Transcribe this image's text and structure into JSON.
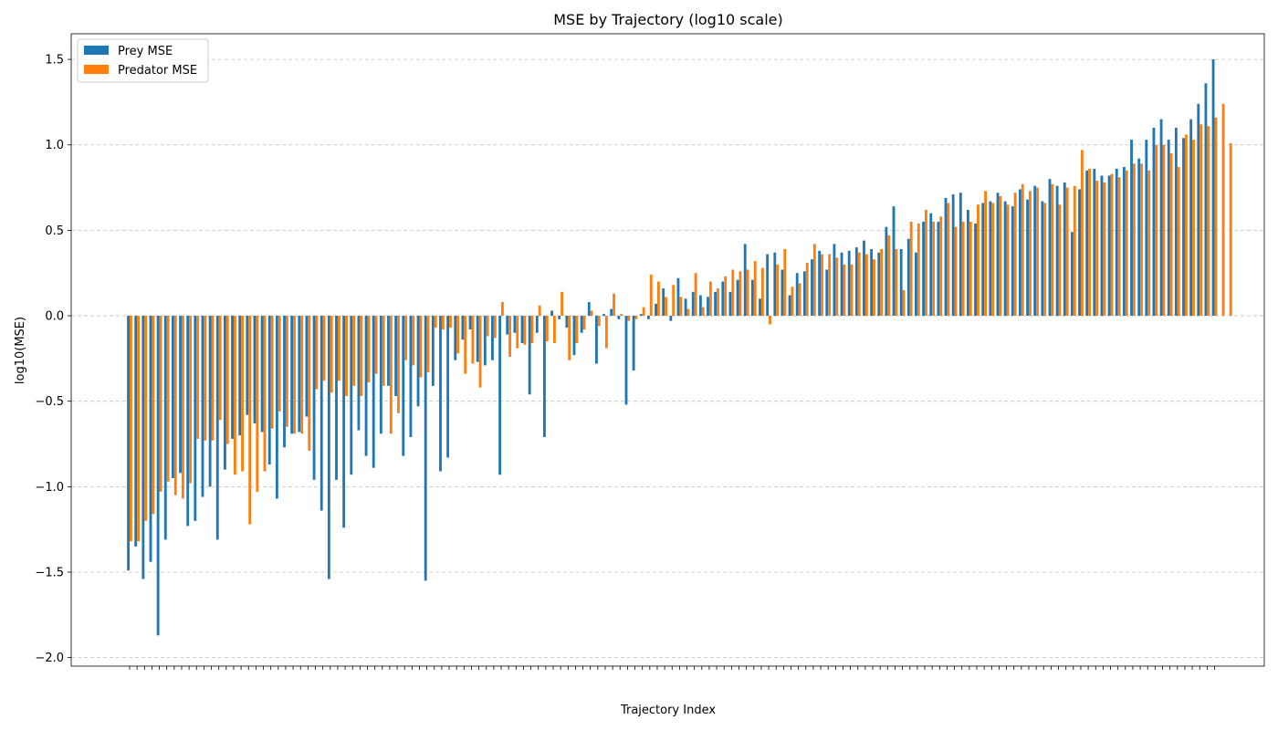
{
  "chart_data": {
    "type": "bar",
    "title": "MSE by Trajectory (log10 scale)",
    "xlabel": "Trajectory Index",
    "ylabel": "log10(MSE)",
    "ylim": [
      -2.05,
      1.65
    ],
    "yticks": [
      -2.0,
      -1.5,
      -1.0,
      -0.5,
      0.0,
      0.5,
      1.0,
      1.5
    ],
    "ytick_labels": [
      "−2.0",
      "−1.5",
      "−1.0",
      "−0.5",
      "0.0",
      "0.5",
      "1.0",
      "1.5"
    ],
    "x_tick_labels_shown": false,
    "grid": "y-dashed",
    "legend": "top-left",
    "series": [
      {
        "name": "Prey MSE",
        "color": "#1f77b4",
        "values": [
          -1.49,
          -1.35,
          -1.54,
          -1.44,
          -1.87,
          -1.31,
          -0.95,
          -0.92,
          -1.23,
          -1.2,
          -1.06,
          -1.0,
          -1.31,
          -0.9,
          -0.72,
          -0.7,
          -0.58,
          -0.63,
          -0.68,
          -0.87,
          -1.07,
          -0.77,
          -0.69,
          -0.68,
          -0.59,
          -0.96,
          -1.14,
          -1.54,
          -0.96,
          -1.24,
          -0.93,
          -0.67,
          -0.82,
          -0.89,
          -0.69,
          -0.41,
          -0.47,
          -0.82,
          -0.71,
          -0.53,
          -1.55,
          -0.41,
          -0.91,
          -0.83,
          -0.26,
          -0.14,
          -0.08,
          -0.27,
          -0.29,
          -0.26,
          -0.93,
          -0.11,
          -0.1,
          -0.16,
          -0.46,
          -0.1,
          -0.71,
          0.03,
          -0.02,
          -0.07,
          -0.23,
          -0.1,
          0.08,
          -0.28,
          0.01,
          0.04,
          -0.02,
          -0.52,
          -0.32,
          0.01,
          -0.02,
          0.07,
          0.16,
          -0.03,
          0.22,
          0.1,
          0.14,
          0.12,
          0.11,
          0.14,
          0.2,
          0.14,
          0.21,
          0.42,
          0.21,
          0.1,
          0.36,
          0.37,
          0.27,
          0.12,
          0.25,
          0.26,
          0.33,
          0.38,
          0.27,
          0.42,
          0.37,
          0.38,
          0.4,
          0.44,
          0.39,
          0.37,
          0.52,
          0.64,
          0.39,
          0.45,
          0.37,
          0.55,
          0.6,
          0.55,
          0.69,
          0.71,
          0.72,
          0.62,
          0.54,
          0.66,
          0.67,
          0.72,
          0.67,
          0.64,
          0.74,
          0.68,
          0.76,
          0.67,
          0.8,
          0.76,
          0.78,
          0.49,
          0.74,
          0.85,
          0.86,
          0.82,
          0.82,
          0.86,
          0.87,
          1.03,
          0.92,
          1.03,
          1.1,
          1.15,
          1.03,
          1.1,
          1.04,
          1.15,
          1.24,
          1.36,
          1.5
        ]
      },
      {
        "name": "Predator MSE",
        "color": "#ff7f0e",
        "values": [
          -1.32,
          -1.32,
          -1.2,
          -1.16,
          -1.03,
          -0.97,
          -1.05,
          -1.07,
          -0.98,
          -0.72,
          -0.73,
          -0.73,
          -0.61,
          -0.75,
          -0.93,
          -0.91,
          -1.22,
          -1.03,
          -0.91,
          -0.66,
          -0.56,
          -0.65,
          -0.69,
          -0.69,
          -0.79,
          -0.43,
          -0.38,
          -0.45,
          -0.38,
          -0.47,
          -0.41,
          -0.47,
          -0.39,
          -0.34,
          -0.41,
          -0.69,
          -0.57,
          -0.26,
          -0.29,
          -0.36,
          -0.33,
          -0.07,
          -0.08,
          -0.07,
          -0.22,
          -0.34,
          -0.28,
          -0.42,
          -0.12,
          -0.13,
          0.08,
          -0.24,
          -0.19,
          -0.17,
          -0.16,
          0.06,
          -0.15,
          -0.16,
          0.14,
          -0.26,
          -0.16,
          -0.08,
          0.03,
          -0.06,
          -0.19,
          0.13,
          0.01,
          -0.03,
          -0.02,
          0.05,
          0.24,
          0.2,
          0.11,
          0.18,
          0.11,
          0.04,
          0.25,
          0.05,
          0.2,
          0.16,
          0.23,
          0.27,
          0.26,
          0.27,
          0.32,
          0.28,
          -0.05,
          0.3,
          0.39,
          0.17,
          0.19,
          0.31,
          0.42,
          0.36,
          0.36,
          0.34,
          0.3,
          0.3,
          0.37,
          0.36,
          0.33,
          0.39,
          0.47,
          0.39,
          0.15,
          0.55,
          0.54,
          0.62,
          0.55,
          0.58,
          0.66,
          0.52,
          0.55,
          0.55,
          0.65,
          0.73,
          0.66,
          0.7,
          0.65,
          0.72,
          0.77,
          0.73,
          0.75,
          0.66,
          0.77,
          0.65,
          0.75,
          0.76,
          0.97,
          0.86,
          0.79,
          0.78,
          0.83,
          0.81,
          0.85,
          0.89,
          0.89,
          0.85,
          1.0,
          1.0,
          0.95,
          0.87,
          1.06,
          1.03,
          1.12,
          1.11,
          1.16,
          1.24,
          1.01
        ]
      }
    ]
  }
}
